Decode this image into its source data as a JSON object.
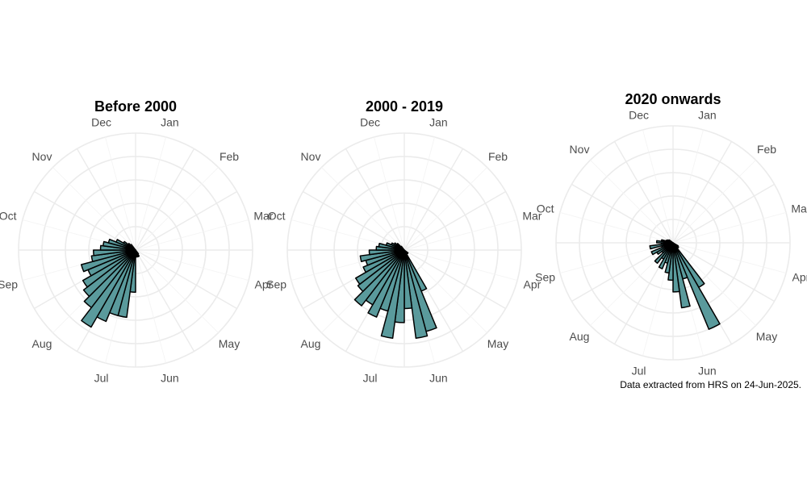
{
  "chart_data": [
    {
      "type": "polar-histogram",
      "title": "Before 2000",
      "month_labels": [
        "Jan",
        "Feb",
        "Mar",
        "Apr",
        "May",
        "Jun",
        "Jul",
        "Aug",
        "Sep",
        "Oct",
        "Nov",
        "Dec"
      ],
      "values": [
        0,
        0,
        0,
        0,
        0,
        0,
        0,
        0,
        0,
        0,
        0,
        0,
        0,
        0,
        0,
        0,
        0,
        0,
        0,
        0.04,
        0.06,
        0.06,
        0.05,
        0.06,
        0.36,
        0.58,
        0.58,
        0.66,
        0.76,
        0.62,
        0.56,
        0.52,
        0.44,
        0.48,
        0.38,
        0.36,
        0.3,
        0.28,
        0.24,
        0.18,
        0.12,
        0.08,
        0.06,
        0,
        0,
        0,
        0,
        0
      ],
      "rmax": 1.0,
      "bar_color": "#5a9a9c",
      "grid": true
    },
    {
      "type": "polar-histogram",
      "title": "2000 - 2019",
      "month_labels": [
        "Jan",
        "Feb",
        "Mar",
        "Apr",
        "May",
        "Jun",
        "Jul",
        "Aug",
        "Sep",
        "Oct",
        "Nov",
        "Dec"
      ],
      "values": [
        0,
        0,
        0,
        0,
        0,
        0,
        0,
        0,
        0,
        0,
        0,
        0,
        0,
        0,
        0,
        0,
        0,
        0.04,
        0.04,
        0.04,
        0.38,
        0.72,
        0.76,
        0.5,
        0.62,
        0.76,
        0.54,
        0.62,
        0.54,
        0.6,
        0.5,
        0.48,
        0.38,
        0.34,
        0.38,
        0.3,
        0.24,
        0.22,
        0.16,
        0.12,
        0.1,
        0.08,
        0.04,
        0,
        0,
        0,
        0,
        0
      ],
      "rmax": 1.0,
      "bar_color": "#5a9a9c",
      "grid": true
    },
    {
      "type": "polar-histogram",
      "title": "2020 onwards",
      "month_labels": [
        "Jan",
        "Feb",
        "Mar",
        "Apr",
        "May",
        "Jun",
        "Jul",
        "Aug",
        "Sep",
        "Oct",
        "Nov",
        "Dec"
      ],
      "values": [
        0,
        0,
        0,
        0,
        0,
        0,
        0,
        0,
        0,
        0,
        0,
        0,
        0,
        0,
        0,
        0,
        0.05,
        0.06,
        0.05,
        0.44,
        0.8,
        0.32,
        0.56,
        0.42,
        0.32,
        0.26,
        0.18,
        0.24,
        0.16,
        0.22,
        0.12,
        0.16,
        0.2,
        0.1,
        0.2,
        0.1,
        0.14,
        0.1,
        0.06,
        0.05,
        0.04,
        0,
        0,
        0,
        0,
        0,
        0,
        0
      ],
      "rmax": 1.0,
      "bar_color": "#5a9a9c",
      "grid": true
    }
  ],
  "caption": "Data extracted from HRS on 24-Jun-2025."
}
